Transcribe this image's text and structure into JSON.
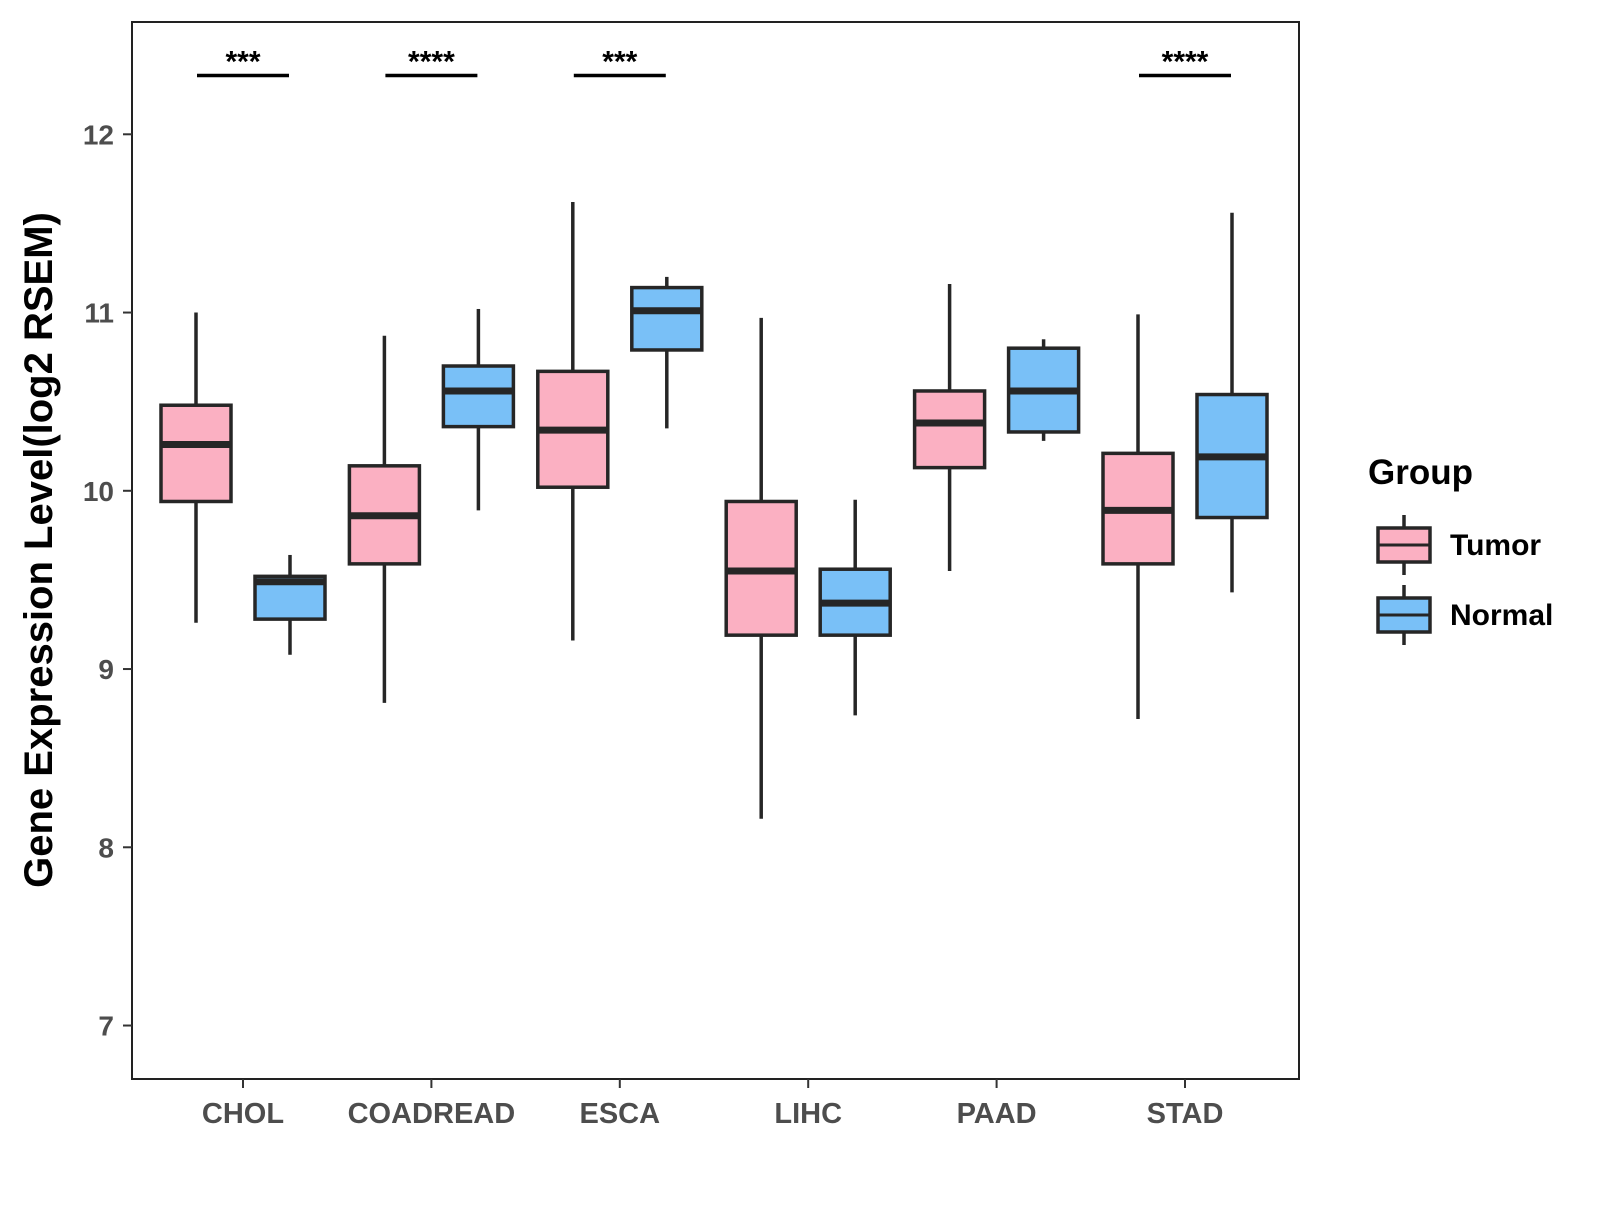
{
  "chart_data": {
    "type": "boxplot",
    "ylabel": "Gene Expression Level(log2 RSEM)",
    "xlabel": "",
    "ylim": [
      6.7,
      12.63
    ],
    "yticks": [
      7,
      8,
      9,
      10,
      11,
      12
    ],
    "categories": [
      "CHOL",
      "COADREAD",
      "ESCA",
      "LIHC",
      "PAAD",
      "STAD"
    ],
    "legend": {
      "title": "Group",
      "position": "right",
      "entries": [
        "Tumor",
        "Normal"
      ]
    },
    "colors": {
      "Tumor": "#FBB0C2",
      "Normal": "#79C0F7",
      "outline": "#262626"
    },
    "grid": false,
    "series": [
      {
        "name": "Tumor",
        "boxes": [
          {
            "category": "CHOL",
            "min": 9.26,
            "q1": 9.94,
            "median": 10.26,
            "q3": 10.48,
            "max": 11.0
          },
          {
            "category": "COADREAD",
            "min": 8.81,
            "q1": 9.59,
            "median": 9.86,
            "q3": 10.14,
            "max": 10.87
          },
          {
            "category": "ESCA",
            "min": 9.16,
            "q1": 10.02,
            "median": 10.34,
            "q3": 10.67,
            "max": 11.62
          },
          {
            "category": "LIHC",
            "min": 8.16,
            "q1": 9.19,
            "median": 9.55,
            "q3": 9.94,
            "max": 10.97
          },
          {
            "category": "PAAD",
            "min": 9.55,
            "q1": 10.13,
            "median": 10.38,
            "q3": 10.56,
            "max": 11.16
          },
          {
            "category": "STAD",
            "min": 8.72,
            "q1": 9.59,
            "median": 9.89,
            "q3": 10.21,
            "max": 10.99
          }
        ]
      },
      {
        "name": "Normal",
        "boxes": [
          {
            "category": "CHOL",
            "min": 9.08,
            "q1": 9.28,
            "median": 9.49,
            "q3": 9.52,
            "max": 9.64
          },
          {
            "category": "COADREAD",
            "min": 9.89,
            "q1": 10.36,
            "median": 10.56,
            "q3": 10.7,
            "max": 11.02
          },
          {
            "category": "ESCA",
            "min": 10.35,
            "q1": 10.79,
            "median": 11.01,
            "q3": 11.14,
            "max": 11.2
          },
          {
            "category": "LIHC",
            "min": 8.74,
            "q1": 9.19,
            "median": 9.37,
            "q3": 9.56,
            "max": 9.95
          },
          {
            "category": "PAAD",
            "min": 10.28,
            "q1": 10.33,
            "median": 10.56,
            "q3": 10.8,
            "max": 10.85
          },
          {
            "category": "STAD",
            "min": 9.43,
            "q1": 9.85,
            "median": 10.19,
            "q3": 10.54,
            "max": 11.56
          }
        ]
      }
    ],
    "annotations": [
      {
        "category": "CHOL",
        "label": "***"
      },
      {
        "category": "COADREAD",
        "label": "****"
      },
      {
        "category": "ESCA",
        "label": "***"
      },
      {
        "category": "STAD",
        "label": "****"
      }
    ],
    "annotation_y": 12.33
  }
}
